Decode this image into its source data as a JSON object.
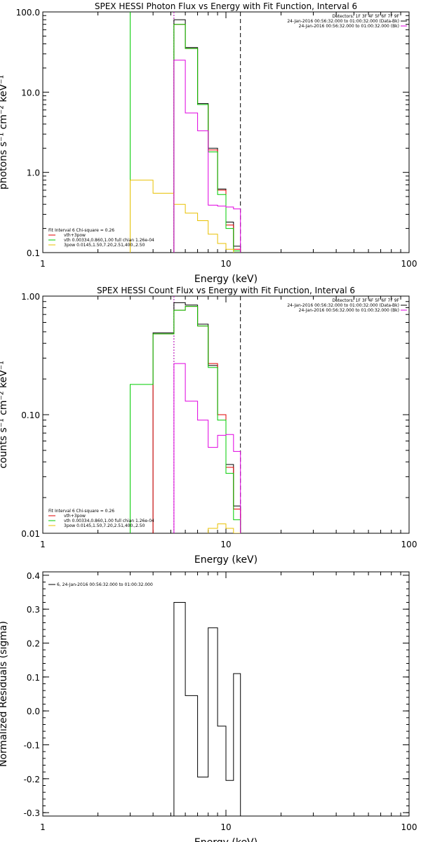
{
  "chart_data": [
    {
      "type": "line",
      "title": "SPEX HESSI Photon Flux vs Energy with Fit Function, Interval 6",
      "xlabel": "Energy (keV)",
      "ylabel": "photons s⁻¹ cm⁻² keV⁻¹",
      "xscale": "log",
      "yscale": "log",
      "xlim": [
        1,
        100
      ],
      "ylim": [
        0.1,
        100
      ],
      "xticks": [
        "1",
        "10",
        "100"
      ],
      "yticks": [
        "0.1",
        "1.0",
        "10.0",
        "100.0"
      ],
      "bin_edges": [
        3,
        4,
        5.2,
        6,
        7,
        8,
        9,
        10,
        11,
        12
      ],
      "series": [
        {
          "name": "",
          "color": "#000000",
          "values": [
            null,
            null,
            80,
            36,
            7.2,
            2.0,
            0.62,
            0.24,
            0.12
          ]
        },
        {
          "name": "vth+3pow",
          "color": "#e00000",
          "values": [
            null,
            null,
            70,
            35,
            7.0,
            1.9,
            0.6,
            0.22,
            0.11
          ]
        },
        {
          "name": "vth 0.00334,0.860,1.00  full chian 1.26e-04",
          "color": "#00cc00",
          "values": [
            null,
            null,
            70,
            35,
            7.0,
            1.8,
            0.53,
            0.2,
            0.105
          ]
        },
        {
          "name": "3pow 0.0145,1.50,7.20,2.51,400.,2.50",
          "color": "#e8c000",
          "values": [
            0.8,
            0.55,
            0.4,
            0.31,
            0.25,
            0.17,
            0.13,
            0.11,
            null
          ]
        },
        {
          "name": "",
          "color": "#e000e0",
          "values": [
            null,
            null,
            25,
            5.5,
            3.3,
            0.39,
            0.38,
            0.37,
            0.35
          ]
        }
      ],
      "vlines": [
        {
          "x": 3,
          "color": "#00cc00",
          "style": "solid"
        },
        {
          "x": 5.2,
          "color": "#00cc00",
          "style": "dotted"
        },
        {
          "x": 5.2,
          "color": "#e000e0",
          "style": "dotted"
        },
        {
          "x": 12,
          "color": "#000000",
          "style": "dashed"
        }
      ],
      "legend_top_right": [
        "Detectors: 1F 3F 4F 5F 6F 7F 9F",
        "24-Jan-2016 00:56:32.000 to 01:00:32.000 (Data-Bk)",
        "24-Jan-2016 00:56:32.000 to 01:00:32.000 (Bk)"
      ],
      "legend_bottom_left": [
        "Fit Interval 6   Chi-square = 0.26",
        "vth+3pow",
        "vth 0.00334,0.860,1.00  full chian 1.26e-04",
        "3pow 0.0145,1.50,7.20,2.51,400.,2.50"
      ]
    },
    {
      "type": "line",
      "title": "SPEX HESSI Count Flux vs Energy with Fit Function, Interval 6",
      "xlabel": "Energy (keV)",
      "ylabel": "counts s⁻¹ cm⁻² keV⁻¹",
      "xscale": "log",
      "yscale": "log",
      "xlim": [
        1,
        100
      ],
      "ylim": [
        0.01,
        1.0
      ],
      "xticks": [
        "1",
        "10",
        "100"
      ],
      "yticks": [
        "0.01",
        "0.10",
        "1.00"
      ],
      "bin_edges": [
        3,
        4,
        5.2,
        6,
        7,
        8,
        9,
        10,
        11,
        12
      ],
      "series": [
        {
          "name": "",
          "color": "#000000",
          "values": [
            null,
            0.49,
            0.88,
            0.84,
            0.58,
            0.26,
            0.1,
            0.038,
            0.017
          ]
        },
        {
          "name": "vth+3pow",
          "color": "#e00000",
          "values": [
            null,
            0.48,
            0.76,
            0.82,
            0.56,
            0.27,
            0.1,
            0.036,
            0.016
          ]
        },
        {
          "name": "vth 0.00334,0.860,1.00  full chian 1.26e-04",
          "color": "#00cc00",
          "values": [
            0.18,
            0.48,
            0.76,
            0.82,
            0.56,
            0.25,
            0.09,
            0.032,
            0.013
          ]
        },
        {
          "name": "3pow 0.0145,1.50,7.20,2.51,400.,2.50",
          "color": "#e8c000",
          "values": [
            null,
            null,
            null,
            null,
            null,
            0.011,
            0.012,
            0.011,
            0.01
          ]
        },
        {
          "name": "",
          "color": "#e000e0",
          "values": [
            null,
            null,
            0.27,
            0.13,
            0.09,
            0.053,
            0.067,
            0.068,
            0.049
          ]
        }
      ],
      "vlines": [
        {
          "x": 5.2,
          "color": "#00cc00",
          "style": "dotted"
        },
        {
          "x": 5.2,
          "color": "#e000e0",
          "style": "dotted"
        },
        {
          "x": 12,
          "color": "#000000",
          "style": "dashed"
        }
      ],
      "legend_top_right": [
        "Detectors: 1F 3F 4F 5F 6F 7F 9F",
        "24-Jan-2016 00:56:32.000 to 01:00:32.000 (Data-Bk)",
        "24-Jan-2016 00:56:32.000 to 01:00:32.000 (Bk)"
      ],
      "legend_bottom_left": [
        "Fit Interval 6   Chi-square = 0.26",
        "vth+3pow",
        "vth 0.00334,0.860,1.00  full chian 1.26e-04",
        "3pow 0.0145,1.50,7.20,2.51,400.,2.50"
      ]
    },
    {
      "type": "line",
      "title": "",
      "xlabel": "Energy (keV)",
      "ylabel": "Normalized Residuals (sigma)",
      "xscale": "log",
      "yscale": "linear",
      "xlim": [
        1,
        100
      ],
      "ylim": [
        -0.31,
        0.41
      ],
      "xticks": [
        "1",
        "10",
        "100"
      ],
      "yticks": [
        "-0.3",
        "-0.2",
        "-0.1",
        "0.0",
        "0.1",
        "0.2",
        "0.3",
        "0.4"
      ],
      "bin_edges": [
        5.2,
        6,
        7,
        8,
        9,
        10,
        11,
        12
      ],
      "series": [
        {
          "name": "6, 24-Jan-2016 00:56:32.000 to 01:00:32.000",
          "color": "#000000",
          "values": [
            0.32,
            0.045,
            -0.195,
            0.245,
            -0.045,
            -0.205,
            0.11
          ]
        }
      ],
      "legend_top_left": [
        "6, 24-Jan-2016 00:56:32.000 to 01:00:32.000"
      ]
    }
  ]
}
